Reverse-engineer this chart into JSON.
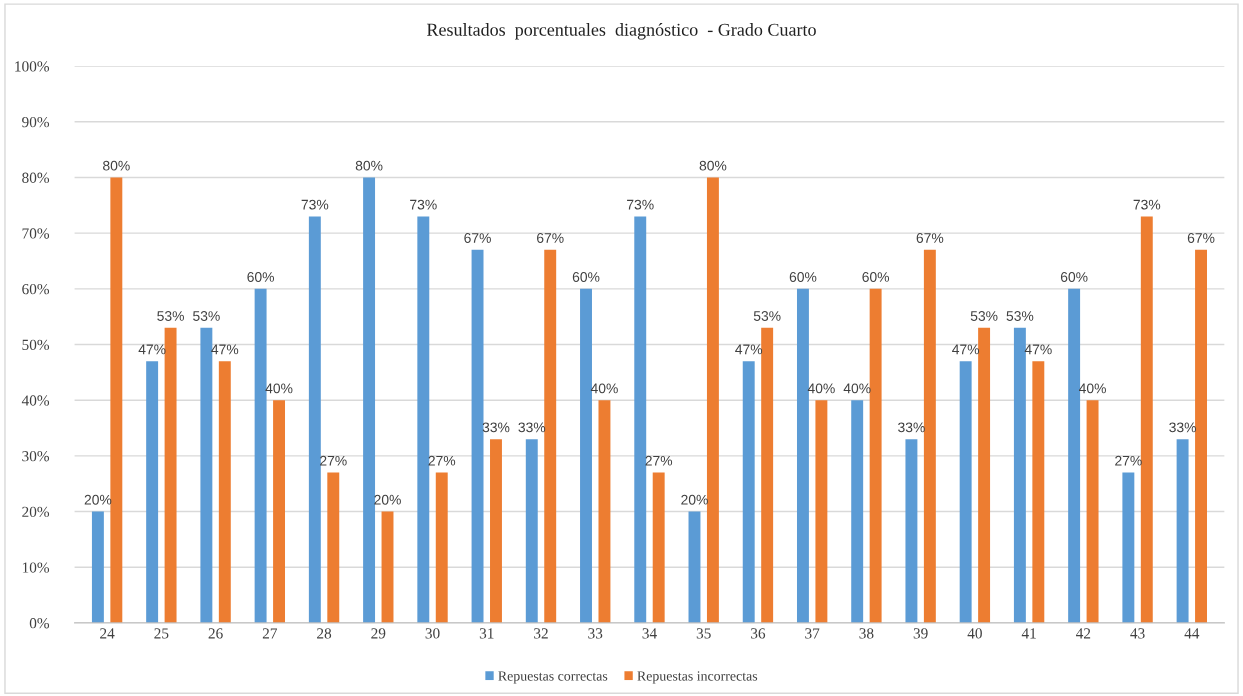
{
  "chart_data": {
    "type": "bar",
    "title": "Resultados  porcentuales  diagnóstico  - Grado Cuarto",
    "categories": [
      "24",
      "25",
      "26",
      "27",
      "28",
      "29",
      "30",
      "31",
      "32",
      "33",
      "34",
      "35",
      "36",
      "37",
      "38",
      "39",
      "40",
      "41",
      "42",
      "43",
      "44"
    ],
    "series": [
      {
        "name": "Repuestas correctas",
        "color": "#5b9bd5",
        "values": [
          20,
          47,
          53,
          60,
          73,
          80,
          73,
          67,
          33,
          60,
          73,
          20,
          47,
          60,
          40,
          33,
          47,
          53,
          60,
          27,
          33
        ],
        "value_labels": [
          "20%",
          "47%",
          "53%",
          "60%",
          "73%",
          "80%",
          "73%",
          "67%",
          "33%",
          "60%",
          "73%",
          "20%",
          "47%",
          "60%",
          "40%",
          "33%",
          "47%",
          "53%",
          "60%",
          "27%",
          "33%"
        ]
      },
      {
        "name": "Repuestas incorrectas",
        "color": "#ed7d31",
        "values": [
          80,
          53,
          47,
          40,
          27,
          20,
          27,
          33,
          67,
          40,
          27,
          80,
          53,
          40,
          60,
          67,
          53,
          47,
          40,
          73,
          67
        ],
        "value_labels": [
          "80%",
          "53%",
          "47%",
          "40%",
          "27%",
          "20%",
          "27%",
          "33%",
          "67%",
          "40%",
          "27%",
          "80%",
          "53%",
          "40%",
          "60%",
          "67%",
          "53%",
          "47%",
          "40%",
          "73%",
          "67%"
        ]
      }
    ],
    "ylim": [
      0,
      100
    ],
    "yticks": [
      {
        "value": 0,
        "label": "0%"
      },
      {
        "value": 10,
        "label": "10%"
      },
      {
        "value": 20,
        "label": "20%"
      },
      {
        "value": 30,
        "label": "30%"
      },
      {
        "value": 40,
        "label": "40%"
      },
      {
        "value": 50,
        "label": "50%"
      },
      {
        "value": 60,
        "label": "60%"
      },
      {
        "value": 70,
        "label": "70%"
      },
      {
        "value": 80,
        "label": "80%"
      },
      {
        "value": 90,
        "label": "90%"
      },
      {
        "value": 100,
        "label": "100%"
      }
    ],
    "grid": "y",
    "legend": "bottom"
  }
}
